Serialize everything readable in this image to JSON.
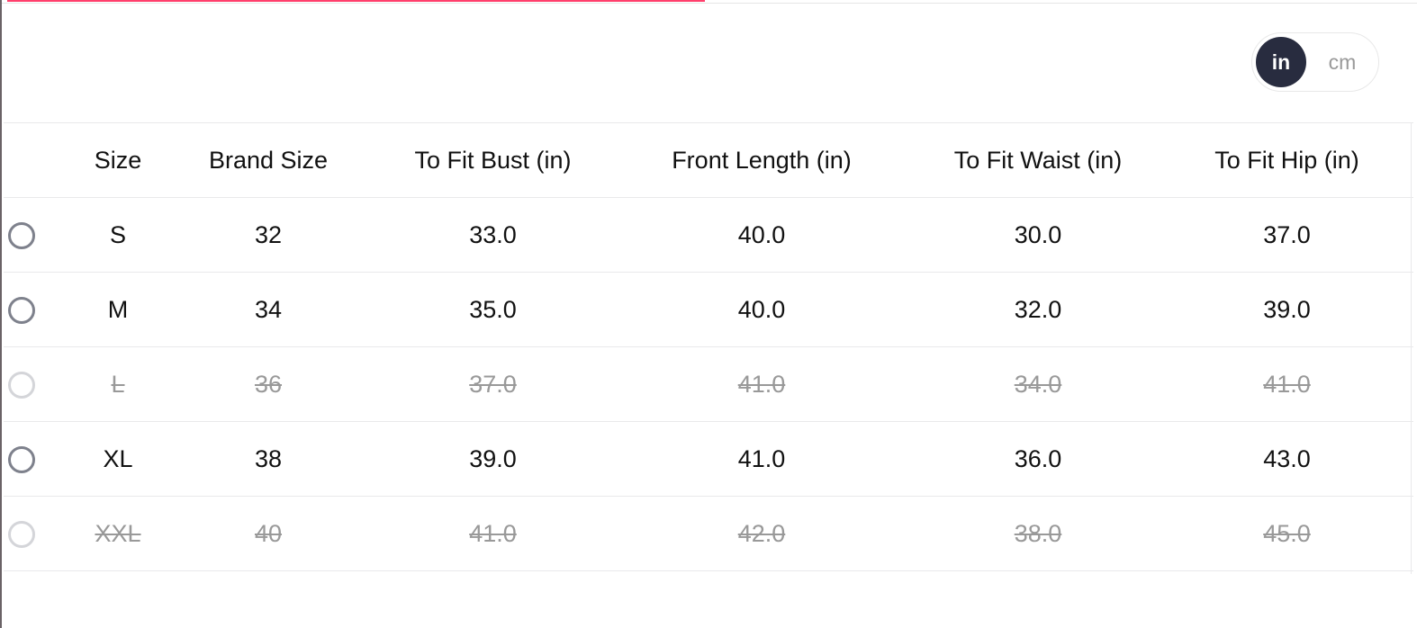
{
  "accent_color": "#ff3f6c",
  "unit_toggle": {
    "options": [
      "in",
      "cm"
    ],
    "selected": "in"
  },
  "table": {
    "headers": [
      "",
      "Size",
      "Brand Size",
      "To Fit Bust (in)",
      "Front Length (in)",
      "To Fit Waist (in)",
      "To Fit Hip (in)"
    ],
    "rows": [
      {
        "cells": [
          "S",
          "32",
          "33.0",
          "40.0",
          "30.0",
          "37.0"
        ],
        "available": true
      },
      {
        "cells": [
          "M",
          "34",
          "35.0",
          "40.0",
          "32.0",
          "39.0"
        ],
        "available": true
      },
      {
        "cells": [
          "L",
          "36",
          "37.0",
          "41.0",
          "34.0",
          "41.0"
        ],
        "available": false
      },
      {
        "cells": [
          "XL",
          "38",
          "39.0",
          "41.0",
          "36.0",
          "43.0"
        ],
        "available": true
      },
      {
        "cells": [
          "XXL",
          "40",
          "41.0",
          "42.0",
          "38.0",
          "45.0"
        ],
        "available": false
      }
    ]
  }
}
